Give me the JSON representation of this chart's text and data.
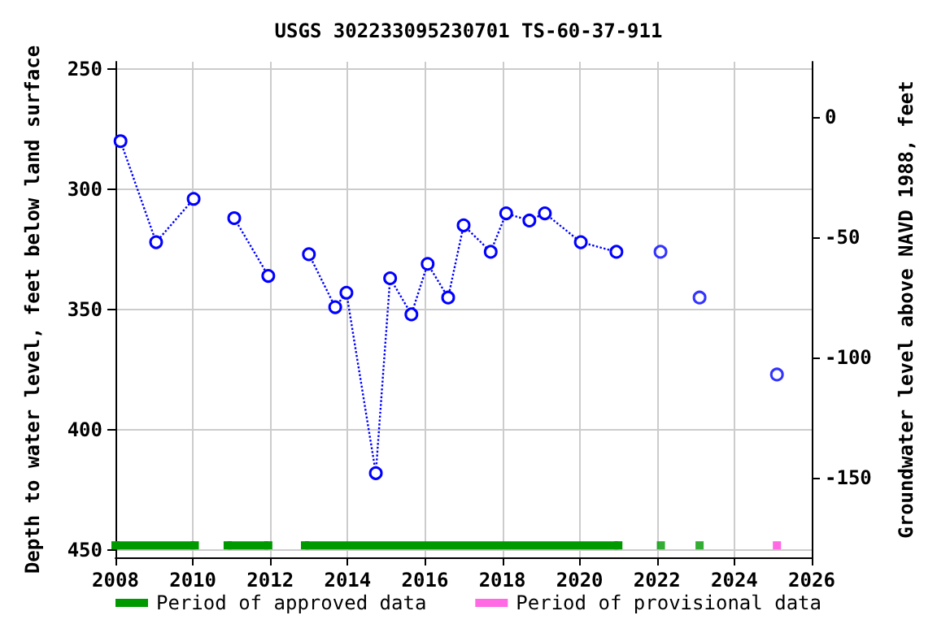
{
  "chart_data": {
    "type": "line",
    "title": "USGS 302233095230701 TS-60-37-911",
    "ylabel": "Depth to water level, feet below land surface",
    "y2label": "Groundwater level above NAVD 1988, feet",
    "xlim": [
      2008,
      2026
    ],
    "xticks": [
      2008,
      2010,
      2012,
      2014,
      2016,
      2018,
      2020,
      2022,
      2024,
      2026
    ],
    "ylim": [
      453,
      247
    ],
    "yticks": [
      250,
      300,
      350,
      400,
      450
    ],
    "y2lim": [
      -183,
      23
    ],
    "y2ticks": [
      -150,
      -100,
      -50,
      0
    ],
    "grid": true,
    "legend": "bottom",
    "series": [
      {
        "color": "#0000ff",
        "marker": "circle",
        "line_style": "dotted",
        "x": [
          2008.13,
          2009.05,
          2010.02
        ],
        "values": [
          280,
          322,
          304
        ]
      },
      {
        "color": "#0000ff",
        "marker": "circle",
        "line_style": "dotted",
        "x": [
          2011.07,
          2011.95
        ],
        "values": [
          312,
          336
        ]
      },
      {
        "color": "#0000ff",
        "marker": "circle",
        "line_style": "dotted",
        "x": [
          2013.0,
          2013.68,
          2013.97,
          2014.73,
          2015.1,
          2015.65,
          2016.07,
          2016.6,
          2017.0,
          2017.7,
          2018.1,
          2018.7,
          2019.1,
          2020.03,
          2020.95
        ],
        "values": [
          327,
          349,
          343,
          418,
          337,
          352,
          331,
          345,
          315,
          326,
          310,
          313,
          310,
          322,
          326
        ]
      },
      {
        "type": "scatter",
        "color": "#0000ff",
        "marker": "circle",
        "x": [
          2022.09,
          2023.1,
          2025.1
        ],
        "values": [
          326,
          345,
          377
        ]
      },
      {
        "name": "Period of approved data",
        "color": "#009900",
        "marker": "square",
        "line_style": "solid",
        "x": [
          2008.0,
          2010.05
        ],
        "values": [
          448,
          448
        ]
      },
      {
        "color": "#009900",
        "marker": "square",
        "line_style": "solid",
        "x": [
          2010.9,
          2011.95
        ],
        "values": [
          448,
          448
        ]
      },
      {
        "color": "#009900",
        "marker": "square",
        "line_style": "solid",
        "x": [
          2012.9,
          2021.0
        ],
        "values": [
          448,
          448
        ]
      },
      {
        "type": "scatter",
        "color": "#009900",
        "marker": "square",
        "x": [
          2022.1,
          2023.1
        ],
        "values": [
          448,
          448
        ]
      },
      {
        "type": "scatter",
        "name": "Period of provisional data",
        "color": "#ff44dd",
        "marker": "square",
        "x": [
          2025.1
        ],
        "values": [
          448
        ]
      }
    ]
  }
}
